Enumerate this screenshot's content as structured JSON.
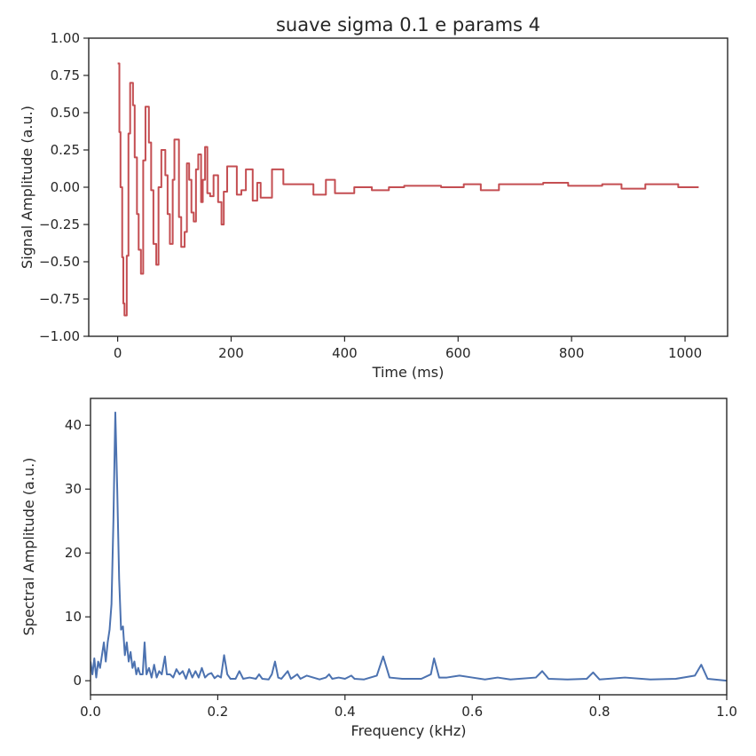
{
  "chart_data": [
    {
      "type": "line",
      "title": "suave sigma 0.1 e params 4",
      "xlabel": "Time (ms)",
      "ylabel": "Signal Amplitude (a.u.)",
      "drawstyle": "steps-post",
      "xlim": [
        -51,
        1075
      ],
      "ylim": [
        -1,
        1
      ],
      "xticks": [
        0,
        200,
        400,
        600,
        800,
        1000
      ],
      "yticks": [
        {
          "value": -1,
          "label": "−1.00"
        },
        {
          "value": -0.75,
          "label": "−0.75"
        },
        {
          "value": -0.5,
          "label": "−0.50"
        },
        {
          "value": -0.25,
          "label": "−0.25"
        },
        {
          "value": 0,
          "label": "0.00"
        },
        {
          "value": 0.25,
          "label": "0.25"
        },
        {
          "value": 0.5,
          "label": "0.50"
        },
        {
          "value": 0.75,
          "label": "0.75"
        },
        {
          "value": 1,
          "label": "1.00"
        }
      ],
      "x": [
        0,
        3,
        5,
        8,
        10,
        12,
        16,
        19,
        22,
        27,
        30,
        34,
        37,
        41,
        45,
        49,
        55,
        59,
        63,
        68,
        72,
        77,
        84,
        88,
        92,
        97,
        100,
        108,
        112,
        118,
        122,
        126,
        130,
        134,
        138,
        142,
        147,
        150,
        154,
        158,
        163,
        169,
        177,
        183,
        187,
        193,
        210,
        218,
        226,
        238,
        246,
        252,
        272,
        292,
        345,
        367,
        383,
        417,
        448,
        478,
        505,
        570,
        610,
        640,
        672,
        750,
        794,
        854,
        888,
        930,
        988,
        1024
      ],
      "series": [
        {
          "color": "#c44e52",
          "values": [
            0.83,
            0.37,
            0.0,
            -0.47,
            -0.78,
            -0.86,
            -0.46,
            0.36,
            0.7,
            0.55,
            0.2,
            -0.18,
            -0.42,
            -0.58,
            0.18,
            0.54,
            0.3,
            -0.02,
            -0.38,
            -0.52,
            0.0,
            0.25,
            0.08,
            -0.18,
            -0.38,
            0.05,
            0.32,
            -0.2,
            -0.4,
            -0.3,
            0.16,
            0.05,
            -0.17,
            -0.23,
            0.12,
            0.22,
            -0.1,
            0.05,
            0.27,
            -0.04,
            -0.06,
            0.08,
            -0.1,
            -0.25,
            -0.03,
            0.14,
            -0.05,
            -0.02,
            0.12,
            -0.09,
            0.03,
            -0.07,
            0.12,
            0.02,
            -0.05,
            0.05,
            -0.04,
            0.0,
            -0.02,
            0.0,
            0.01,
            0.0,
            0.02,
            -0.02,
            0.02,
            0.03,
            0.01,
            0.02,
            -0.01,
            0.02,
            0.0,
            0.0
          ]
        }
      ]
    },
    {
      "type": "line",
      "xlabel": "Frequency (kHz)",
      "ylabel": "Spectral Amplitude (a.u.)",
      "xlim": [
        0,
        1
      ],
      "ylim": [
        -2.2,
        44.2
      ],
      "xticks": [
        {
          "value": 0,
          "label": "0.0"
        },
        0.2,
        0.4,
        0.6,
        0.8,
        {
          "value": 1,
          "label": "1.0"
        }
      ],
      "yticks": [
        0,
        10,
        20,
        30,
        40
      ],
      "x": [
        0,
        0.003,
        0.006,
        0.009,
        0.012,
        0.015,
        0.018,
        0.021,
        0.024,
        0.027,
        0.03,
        0.033,
        0.036,
        0.039,
        0.042,
        0.045,
        0.048,
        0.051,
        0.054,
        0.057,
        0.06,
        0.063,
        0.066,
        0.069,
        0.072,
        0.075,
        0.078,
        0.082,
        0.085,
        0.088,
        0.092,
        0.096,
        0.1,
        0.104,
        0.108,
        0.112,
        0.117,
        0.12,
        0.125,
        0.13,
        0.135,
        0.14,
        0.145,
        0.15,
        0.155,
        0.16,
        0.165,
        0.17,
        0.175,
        0.18,
        0.185,
        0.19,
        0.195,
        0.2,
        0.205,
        0.21,
        0.215,
        0.22,
        0.228,
        0.234,
        0.24,
        0.25,
        0.26,
        0.265,
        0.27,
        0.28,
        0.285,
        0.29,
        0.295,
        0.3,
        0.31,
        0.315,
        0.325,
        0.33,
        0.34,
        0.35,
        0.36,
        0.37,
        0.375,
        0.38,
        0.39,
        0.4,
        0.41,
        0.415,
        0.43,
        0.45,
        0.46,
        0.47,
        0.49,
        0.52,
        0.535,
        0.54,
        0.548,
        0.56,
        0.58,
        0.6,
        0.62,
        0.64,
        0.66,
        0.7,
        0.71,
        0.72,
        0.75,
        0.78,
        0.79,
        0.8,
        0.84,
        0.88,
        0.92,
        0.95,
        0.96,
        0.97,
        1.0
      ],
      "series": [
        {
          "color": "#4c72b0",
          "values": [
            3,
            1,
            3.5,
            0.5,
            3,
            2,
            4,
            6,
            3,
            6,
            8,
            12,
            25,
            42,
            30,
            16,
            8,
            8.5,
            4,
            6,
            3,
            4.5,
            2,
            3,
            1,
            2,
            1,
            1,
            6,
            1,
            2,
            0.5,
            2.5,
            0.5,
            1.5,
            1,
            3.8,
            1,
            1,
            0.5,
            1.8,
            1,
            1.5,
            0.3,
            1.8,
            0.5,
            1.5,
            0.5,
            2,
            0.5,
            1,
            1.2,
            0.4,
            0.8,
            0.5,
            4,
            1,
            0.3,
            0.3,
            1.5,
            0.3,
            0.5,
            0.3,
            1,
            0.3,
            0.2,
            1,
            3,
            0.5,
            0.3,
            1.5,
            0.3,
            1,
            0.3,
            0.8,
            0.5,
            0.2,
            0.5,
            1,
            0.3,
            0.5,
            0.3,
            0.8,
            0.3,
            0.2,
            0.8,
            3.8,
            0.5,
            0.3,
            0.3,
            1,
            3.5,
            0.5,
            0.5,
            0.8,
            0.5,
            0.2,
            0.5,
            0.2,
            0.5,
            1.5,
            0.3,
            0.2,
            0.3,
            1.3,
            0.2,
            0.5,
            0.2,
            0.3,
            0.8,
            2.5,
            0.3,
            0
          ]
        }
      ]
    }
  ]
}
